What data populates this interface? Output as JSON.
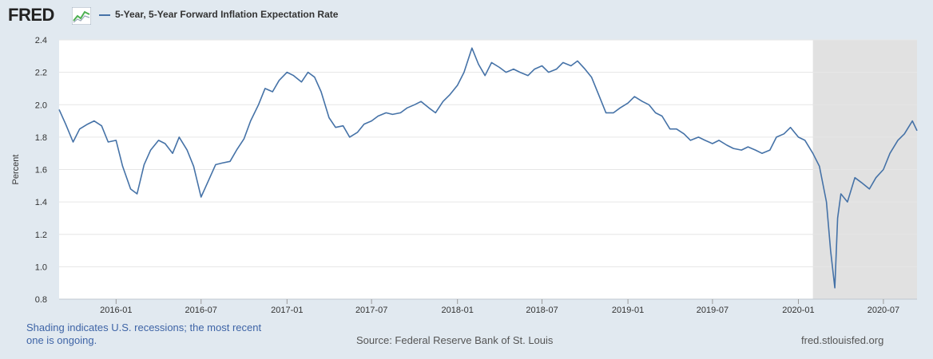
{
  "header": {
    "logo_text": "FRED",
    "logo_icon": "chart-line-icon",
    "legend_label": "5-Year, 5-Year Forward Inflation Expectation Rate"
  },
  "footer": {
    "recession_note": "Shading indicates U.S. recessions; the most recent one is ongoing.",
    "source": "Source: Federal Reserve Bank of St. Louis",
    "site": "fred.stlouisfed.org"
  },
  "colors": {
    "line": "#4572a7",
    "recession_shading": "#e1e1e1",
    "plot_background": "#ffffff",
    "page_background": "#e1e9f0",
    "gridline": "#e6e6e6"
  },
  "chart_data": {
    "type": "line",
    "title": "",
    "xlabel": "",
    "ylabel": "Percent",
    "ylim": [
      0.8,
      2.4
    ],
    "y_ticks": [
      "0.8",
      "1.0",
      "1.2",
      "1.4",
      "1.6",
      "1.8",
      "2.0",
      "2.2",
      "2.4"
    ],
    "x_ticks": [
      "2016-01",
      "2016-07",
      "2017-01",
      "2017-07",
      "2018-01",
      "2018-07",
      "2019-01",
      "2019-07",
      "2020-01",
      "2020-07"
    ],
    "xlim": [
      "2015-09-01",
      "2020-09-11"
    ],
    "grid": true,
    "legend_placement": "top-left",
    "recession_shading": {
      "start": "2020-02-01",
      "end": "2020-09-11"
    },
    "series": [
      {
        "name": "5-Year, 5-Year Forward Inflation Expectation Rate",
        "x": [
          "2015-09-01",
          "2015-09-15",
          "2015-10-01",
          "2015-10-15",
          "2015-11-01",
          "2015-11-15",
          "2015-12-01",
          "2015-12-15",
          "2016-01-01",
          "2016-01-15",
          "2016-02-01",
          "2016-02-15",
          "2016-03-01",
          "2016-03-15",
          "2016-04-01",
          "2016-04-15",
          "2016-05-01",
          "2016-05-15",
          "2016-06-01",
          "2016-06-15",
          "2016-07-01",
          "2016-07-15",
          "2016-08-01",
          "2016-08-15",
          "2016-09-01",
          "2016-09-15",
          "2016-10-01",
          "2016-10-15",
          "2016-11-01",
          "2016-11-15",
          "2016-12-01",
          "2016-12-15",
          "2017-01-01",
          "2017-01-15",
          "2017-02-01",
          "2017-02-15",
          "2017-03-01",
          "2017-03-15",
          "2017-04-01",
          "2017-04-15",
          "2017-05-01",
          "2017-05-15",
          "2017-06-01",
          "2017-06-15",
          "2017-07-01",
          "2017-07-15",
          "2017-08-01",
          "2017-08-15",
          "2017-09-01",
          "2017-09-15",
          "2017-10-01",
          "2017-10-15",
          "2017-11-01",
          "2017-11-15",
          "2017-12-01",
          "2017-12-15",
          "2018-01-01",
          "2018-01-15",
          "2018-02-01",
          "2018-02-15",
          "2018-03-01",
          "2018-03-15",
          "2018-04-01",
          "2018-04-15",
          "2018-05-01",
          "2018-05-15",
          "2018-06-01",
          "2018-06-15",
          "2018-07-01",
          "2018-07-15",
          "2018-08-01",
          "2018-08-15",
          "2018-09-01",
          "2018-09-15",
          "2018-10-01",
          "2018-10-15",
          "2018-11-01",
          "2018-11-15",
          "2018-12-01",
          "2018-12-15",
          "2019-01-01",
          "2019-01-15",
          "2019-02-01",
          "2019-02-15",
          "2019-03-01",
          "2019-03-15",
          "2019-04-01",
          "2019-04-15",
          "2019-05-01",
          "2019-05-15",
          "2019-06-01",
          "2019-06-15",
          "2019-07-01",
          "2019-07-15",
          "2019-08-01",
          "2019-08-15",
          "2019-09-01",
          "2019-09-15",
          "2019-10-01",
          "2019-10-15",
          "2019-11-01",
          "2019-11-15",
          "2019-12-01",
          "2019-12-15",
          "2020-01-01",
          "2020-01-15",
          "2020-02-01",
          "2020-02-15",
          "2020-03-01",
          "2020-03-10",
          "2020-03-19",
          "2020-03-25",
          "2020-04-01",
          "2020-04-15",
          "2020-05-01",
          "2020-05-15",
          "2020-06-01",
          "2020-06-15",
          "2020-07-01",
          "2020-07-15",
          "2020-08-01",
          "2020-08-15",
          "2020-09-01",
          "2020-09-11"
        ],
        "y": [
          1.97,
          1.88,
          1.77,
          1.85,
          1.88,
          1.9,
          1.87,
          1.77,
          1.78,
          1.62,
          1.48,
          1.45,
          1.63,
          1.72,
          1.78,
          1.76,
          1.7,
          1.8,
          1.72,
          1.62,
          1.43,
          1.52,
          1.63,
          1.64,
          1.65,
          1.72,
          1.79,
          1.9,
          2.0,
          2.1,
          2.08,
          2.15,
          2.2,
          2.18,
          2.14,
          2.2,
          2.17,
          2.08,
          1.92,
          1.86,
          1.87,
          1.8,
          1.83,
          1.88,
          1.9,
          1.93,
          1.95,
          1.94,
          1.95,
          1.98,
          2.0,
          2.02,
          1.98,
          1.95,
          2.02,
          2.06,
          2.12,
          2.2,
          2.35,
          2.25,
          2.18,
          2.26,
          2.23,
          2.2,
          2.22,
          2.2,
          2.18,
          2.22,
          2.24,
          2.2,
          2.22,
          2.26,
          2.24,
          2.27,
          2.22,
          2.17,
          2.05,
          1.95,
          1.95,
          1.98,
          2.01,
          2.05,
          2.02,
          2.0,
          1.95,
          1.93,
          1.85,
          1.85,
          1.82,
          1.78,
          1.8,
          1.78,
          1.76,
          1.78,
          1.75,
          1.73,
          1.72,
          1.74,
          1.72,
          1.7,
          1.72,
          1.8,
          1.82,
          1.86,
          1.8,
          1.78,
          1.7,
          1.62,
          1.4,
          1.1,
          0.87,
          1.3,
          1.45,
          1.4,
          1.55,
          1.52,
          1.48,
          1.55,
          1.6,
          1.7,
          1.78,
          1.82,
          1.9,
          1.84
        ]
      }
    ]
  }
}
